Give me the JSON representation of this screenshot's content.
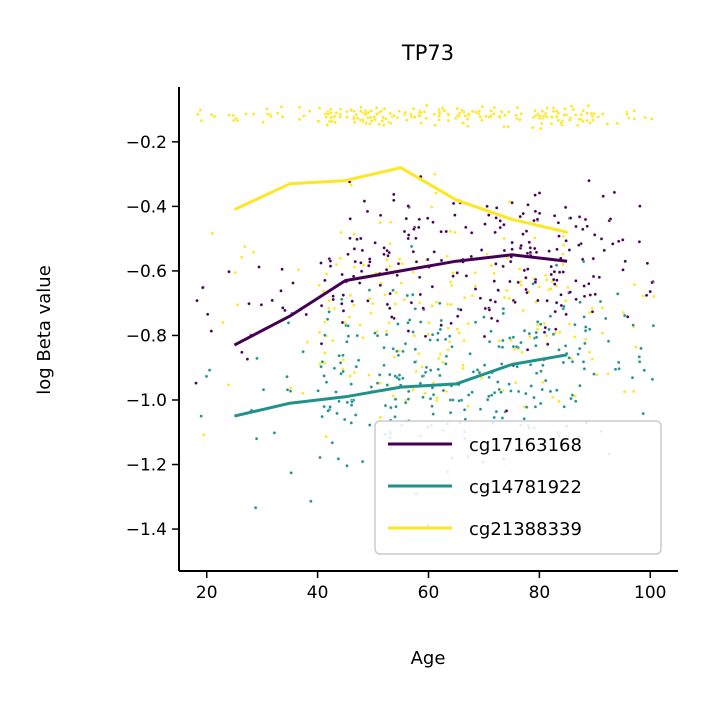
{
  "chart_data": {
    "type": "scatter",
    "title": "TP73",
    "xlabel": "Age",
    "ylabel": "log Beta value",
    "xlim": [
      15,
      105
    ],
    "ylim": [
      -1.53,
      -0.03
    ],
    "xticks": [
      20,
      40,
      60,
      80,
      100
    ],
    "yticks": [
      -0.2,
      -0.4,
      -0.6,
      -0.8,
      -1.0,
      -1.2,
      -1.4
    ],
    "xtick_labels": [
      "20",
      "40",
      "60",
      "80",
      "100"
    ],
    "ytick_labels": [
      "−0.2",
      "−0.4",
      "−0.6",
      "−0.8",
      "−1.0",
      "−1.2",
      "−1.4"
    ],
    "legend_position": "lower-right",
    "grid": false,
    "series": [
      {
        "name": "cg17163168",
        "color": "#440154",
        "trend": {
          "x": [
            25,
            35,
            45,
            55,
            65,
            75,
            85
          ],
          "y": [
            -0.83,
            -0.74,
            -0.63,
            -0.6,
            -0.57,
            -0.55,
            -0.57
          ]
        },
        "scatter": {
          "center": -0.55,
          "spread": 0.12,
          "count": 260
        }
      },
      {
        "name": "cg14781922",
        "color": "#21918c",
        "trend": {
          "x": [
            25,
            35,
            45,
            55,
            65,
            75,
            85
          ],
          "y": [
            -1.05,
            -1.01,
            -0.99,
            -0.96,
            -0.95,
            -0.89,
            -0.86
          ]
        },
        "scatter": {
          "center": -0.93,
          "spread": 0.13,
          "count": 300
        }
      },
      {
        "name": "cg21388339",
        "color": "#fde725",
        "trend": {
          "x": [
            25,
            35,
            45,
            55,
            65,
            75,
            85
          ],
          "y": [
            -0.41,
            -0.33,
            -0.32,
            -0.28,
            -0.38,
            -0.44,
            -0.48
          ]
        },
        "scatter": {
          "center": -0.12,
          "spread": 0.015,
          "count": 230,
          "secondary_center": -0.75,
          "secondary_spread": 0.18,
          "secondary_count": 200
        }
      }
    ]
  }
}
